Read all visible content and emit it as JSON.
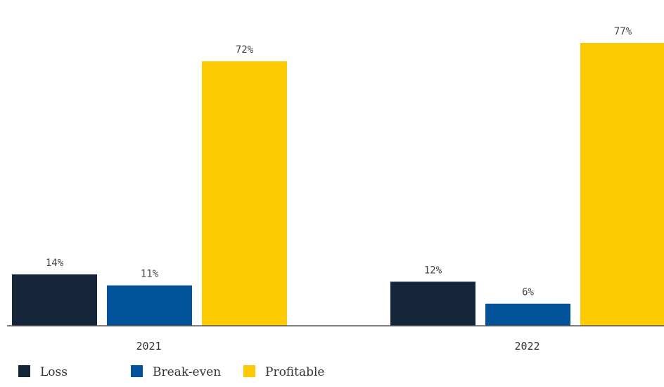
{
  "chart_data": {
    "type": "bar",
    "categories": [
      "2021",
      "2022"
    ],
    "series": [
      {
        "name": "Loss",
        "values": [
          14,
          12
        ],
        "labels": [
          "14%",
          "12%"
        ],
        "color": "#16263a"
      },
      {
        "name": "Break-even",
        "values": [
          11,
          6
        ],
        "labels": [
          "11%",
          "6%"
        ],
        "color": "#03539b"
      },
      {
        "name": "Profitable",
        "values": [
          72,
          77
        ],
        "labels": [
          "72%",
          "77%"
        ],
        "color": "#fdc900"
      }
    ],
    "ylim": [
      0,
      80
    ],
    "legend": "bottom-left",
    "grid": false
  }
}
